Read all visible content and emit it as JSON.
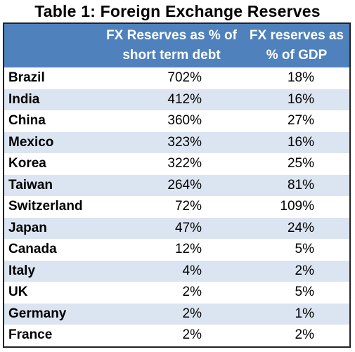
{
  "title": "Table 1: Foreign Exchange Reserves",
  "columns": [
    "",
    "FX Reserves as % of short term debt",
    "FX reserves as % of GDP"
  ],
  "header_lines": {
    "col1": [
      "FX Reserves as % of",
      "short term debt"
    ],
    "col2": [
      "FX reserves as",
      "% of GDP"
    ]
  },
  "rows": [
    {
      "country": "Brazil",
      "fx_pct_short_term_debt": "702%",
      "fx_pct_gdp": "18%"
    },
    {
      "country": "India",
      "fx_pct_short_term_debt": "412%",
      "fx_pct_gdp": "16%"
    },
    {
      "country": "China",
      "fx_pct_short_term_debt": "360%",
      "fx_pct_gdp": "27%"
    },
    {
      "country": "Mexico",
      "fx_pct_short_term_debt": "323%",
      "fx_pct_gdp": "16%"
    },
    {
      "country": "Korea",
      "fx_pct_short_term_debt": "322%",
      "fx_pct_gdp": "25%"
    },
    {
      "country": "Taiwan",
      "fx_pct_short_term_debt": "264%",
      "fx_pct_gdp": "81%"
    },
    {
      "country": "Switzerland",
      "fx_pct_short_term_debt": "72%",
      "fx_pct_gdp": "109%"
    },
    {
      "country": "Japan",
      "fx_pct_short_term_debt": "47%",
      "fx_pct_gdp": "24%"
    },
    {
      "country": "Canada",
      "fx_pct_short_term_debt": "12%",
      "fx_pct_gdp": "5%"
    },
    {
      "country": "Italy",
      "fx_pct_short_term_debt": "4%",
      "fx_pct_gdp": "2%"
    },
    {
      "country": "UK",
      "fx_pct_short_term_debt": "2%",
      "fx_pct_gdp": "5%"
    },
    {
      "country": "Germany",
      "fx_pct_short_term_debt": "2%",
      "fx_pct_gdp": "1%"
    },
    {
      "country": "France",
      "fx_pct_short_term_debt": "2%",
      "fx_pct_gdp": "2%"
    }
  ],
  "colors": {
    "header_bg": "#4f81bd",
    "header_text": "#ffffff",
    "alt_row_bg": "#dbe5f1",
    "border": "#222222"
  }
}
